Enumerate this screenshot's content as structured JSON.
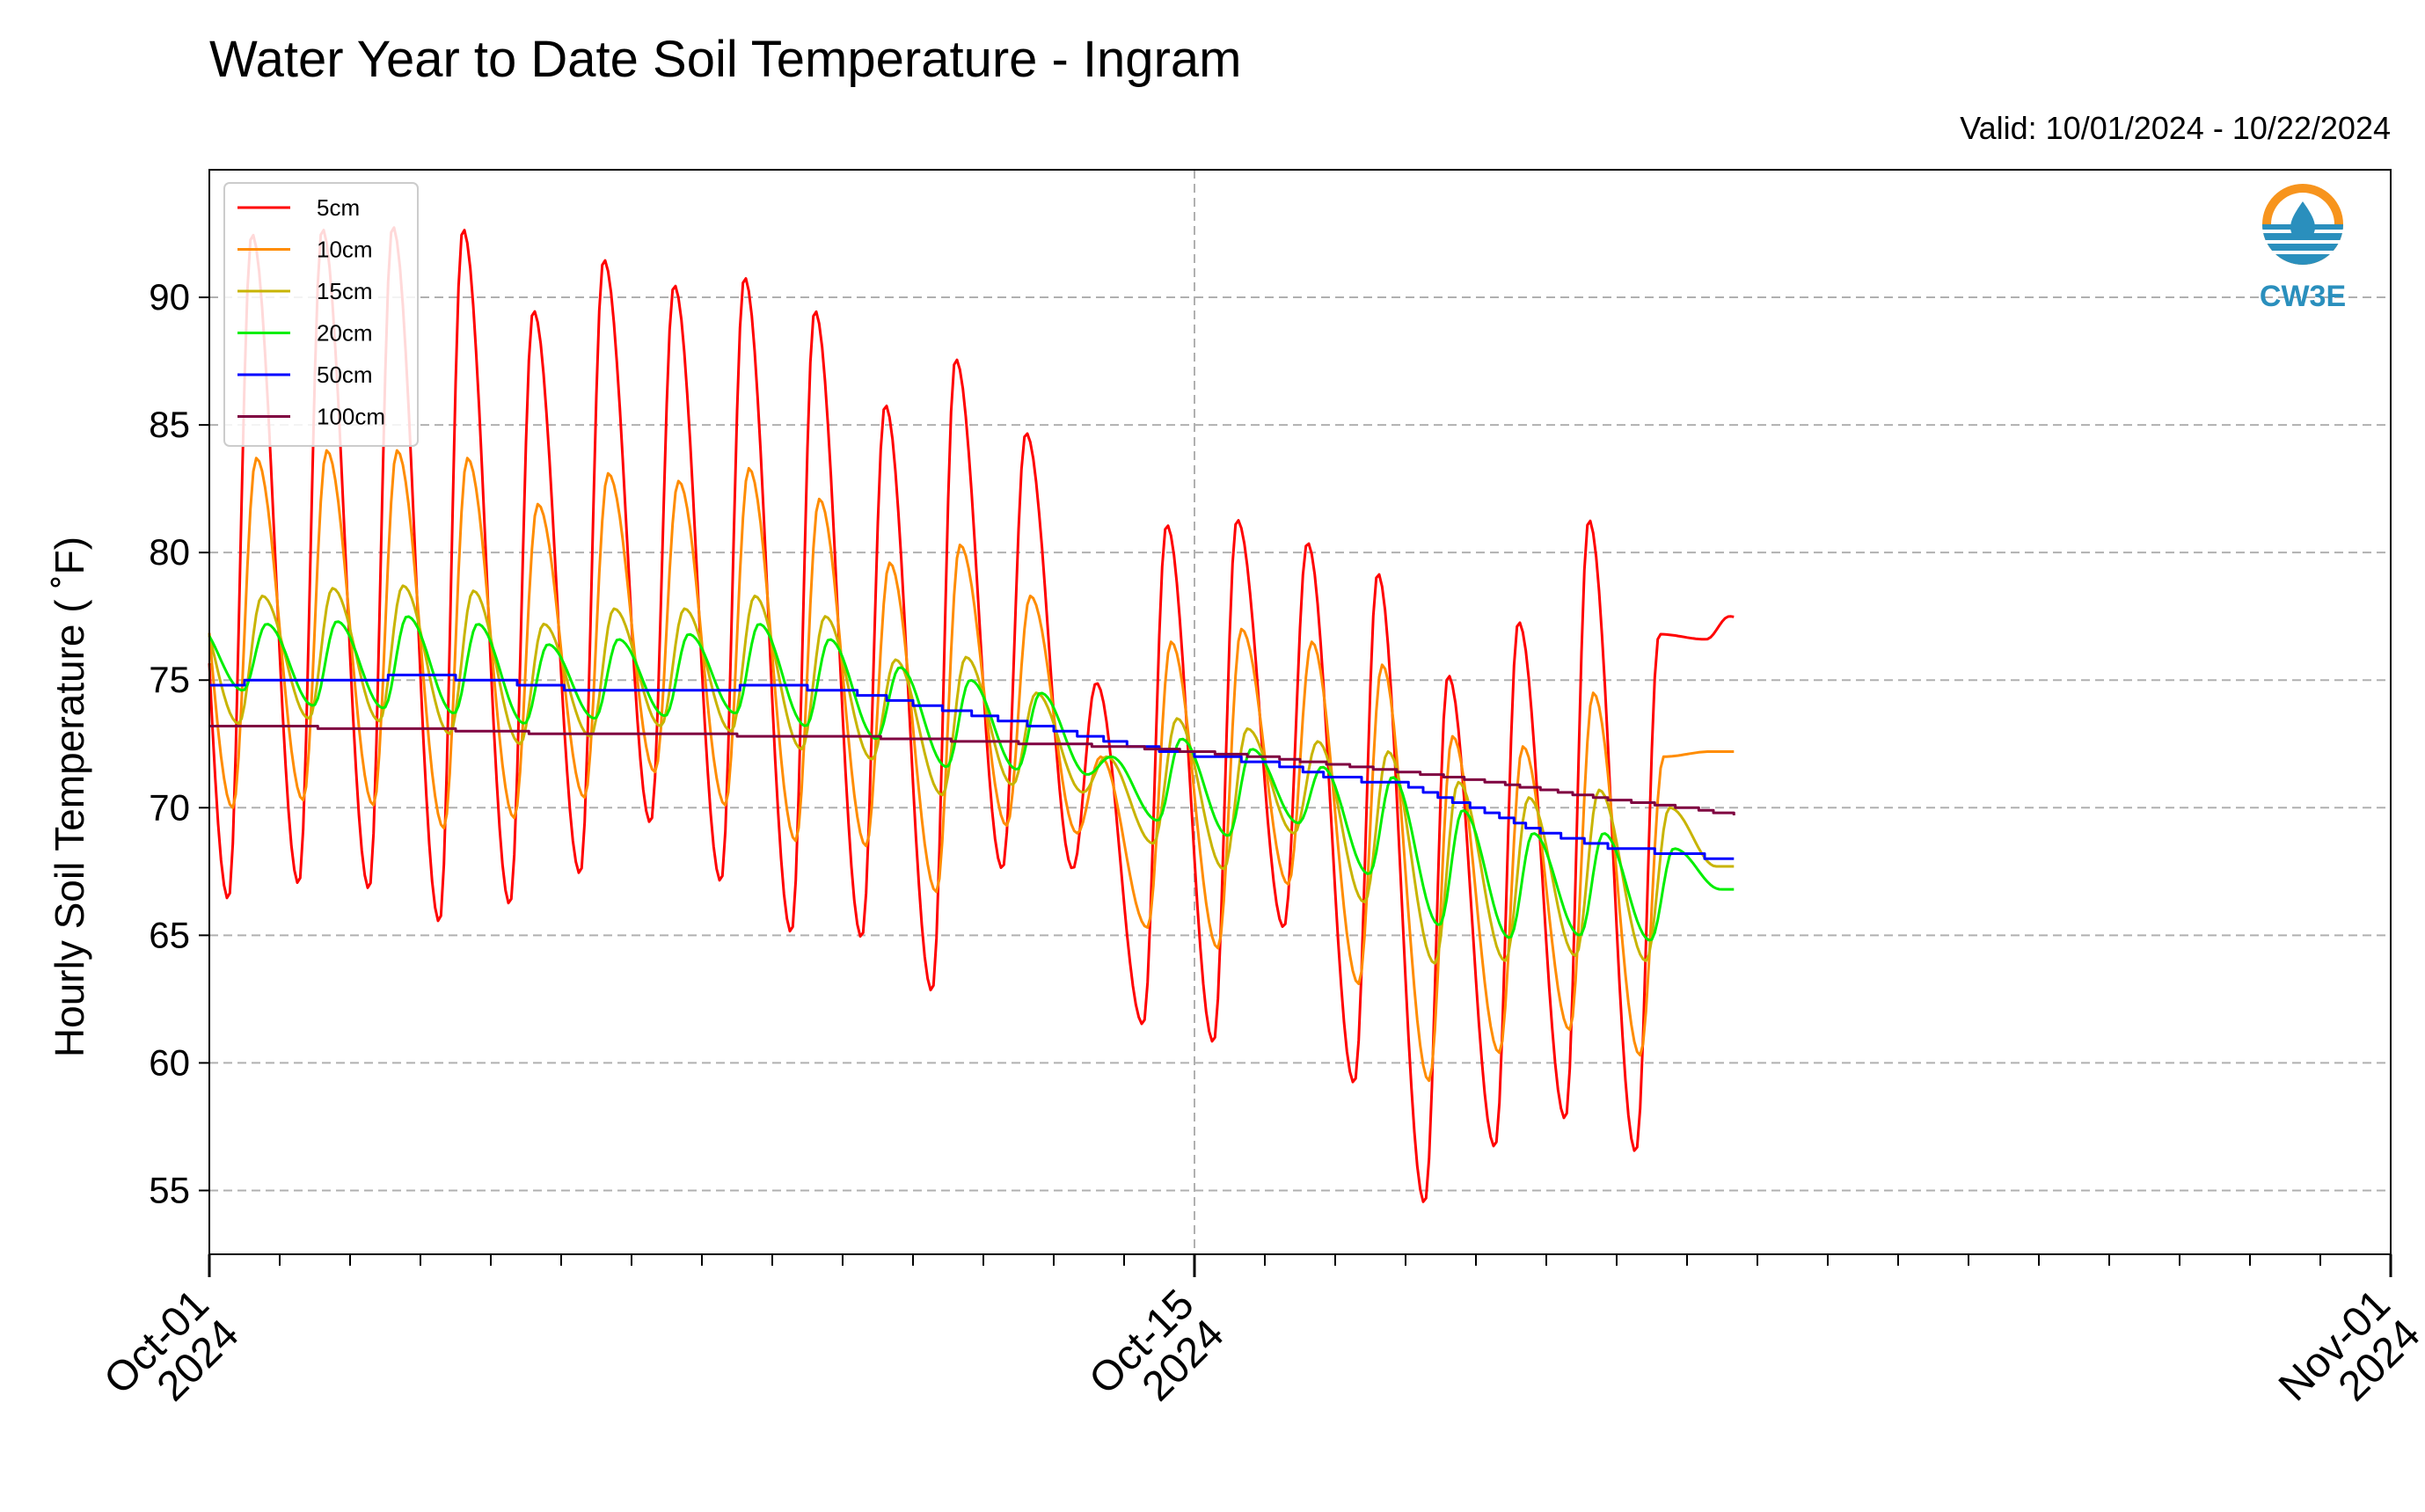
{
  "chart_data": {
    "type": "line",
    "title": "Water Year to Date Soil Temperature - Ingram",
    "subtitle": "Valid: 10/01/2024 - 10/22/2024",
    "ylabel": "Hourly Soil Temperature ( ˚F)",
    "xlabel": "",
    "xlim": [
      "2024-10-01",
      "2024-11-01"
    ],
    "ylim": [
      52.5,
      95
    ],
    "yticks": [
      55,
      60,
      65,
      70,
      75,
      80,
      85,
      90
    ],
    "xticks": [
      {
        "date": "2024-10-01",
        "line1": "Oct-01",
        "line2": "2024"
      },
      {
        "date": "2024-10-15",
        "line1": "Oct-15",
        "line2": "2024"
      },
      {
        "date": "2024-11-01",
        "line1": "Nov-01",
        "line2": "2024"
      }
    ],
    "minor_xticks": "daily",
    "grid": true,
    "legend_position": "upper-left",
    "data_start": "2024-10-01",
    "data_end": "2024-10-22",
    "series": [
      {
        "name": "5cm",
        "color": "#ff0000",
        "daily_max": [
          92.5,
          92.7,
          92.8,
          92.7,
          89.5,
          91.5,
          90.5,
          90.8,
          89.5,
          85.8,
          87.6,
          84.7,
          74.9,
          81.1,
          81.3,
          80.4,
          79.2,
          75.2,
          77.3,
          81.3,
          76.8,
          77.5
        ],
        "daily_min": [
          66.4,
          67.0,
          66.8,
          65.5,
          66.2,
          67.4,
          69.4,
          67.1,
          65.1,
          64.9,
          62.8,
          67.6,
          67.6,
          61.5,
          60.8,
          65.3,
          59.2,
          54.5,
          56.7,
          57.8,
          56.5,
          76.6
        ],
        "peak_hour": 14.5,
        "min_hour": 6.5
      },
      {
        "name": "10cm",
        "color": "#ff8c00",
        "daily_max": [
          83.7,
          84.0,
          84.0,
          83.7,
          81.9,
          83.1,
          82.8,
          83.3,
          82.1,
          79.6,
          80.3,
          78.3,
          72.0,
          76.5,
          77.0,
          76.5,
          75.6,
          72.8,
          72.4,
          74.5,
          72.0,
          72.2
        ],
        "daily_min": [
          70.0,
          70.3,
          70.1,
          69.2,
          69.6,
          70.4,
          71.4,
          70.1,
          68.7,
          68.5,
          66.7,
          69.3,
          69.0,
          65.3,
          64.5,
          67.0,
          63.1,
          59.3,
          60.4,
          61.3,
          60.3,
          72.2
        ],
        "peak_hour": 16,
        "min_hour": 8
      },
      {
        "name": "15cm",
        "color": "#c8b400",
        "daily_max": [
          78.3,
          78.6,
          78.7,
          78.5,
          77.2,
          77.8,
          77.8,
          78.3,
          77.5,
          75.8,
          75.9,
          74.5,
          72.0,
          73.5,
          73.1,
          72.6,
          72.2,
          71.0,
          70.4,
          70.7,
          70.0,
          67.7
        ],
        "daily_min": [
          73.3,
          73.5,
          73.4,
          72.9,
          72.5,
          72.8,
          73.2,
          73.0,
          72.3,
          71.9,
          70.5,
          70.9,
          70.6,
          68.6,
          67.6,
          69.0,
          66.3,
          63.9,
          64.0,
          64.2,
          64.0,
          67.7
        ],
        "peak_hour": 18,
        "min_hour": 10
      },
      {
        "name": "20cm",
        "color": "#00ee00",
        "daily_max": [
          77.2,
          77.3,
          77.5,
          77.2,
          76.4,
          76.6,
          76.8,
          77.2,
          76.6,
          75.5,
          75.0,
          74.5,
          72.0,
          72.7,
          72.3,
          71.6,
          71.2,
          69.9,
          69.0,
          69.0,
          68.4,
          66.8
        ],
        "daily_min": [
          74.6,
          74.0,
          73.9,
          73.7,
          73.3,
          73.5,
          73.6,
          73.7,
          73.2,
          72.7,
          71.6,
          71.5,
          71.3,
          69.5,
          68.9,
          69.4,
          67.4,
          65.4,
          64.9,
          65.0,
          64.8,
          66.8
        ],
        "peak_hour": 19.5,
        "min_hour": 11.5
      },
      {
        "name": "50cm",
        "color": "#0000ff",
        "values_daily": [
          74.7,
          75.1,
          75.0,
          75.2,
          75.0,
          74.7,
          74.5,
          74.6,
          74.8,
          74.6,
          74.1,
          73.6,
          73.1,
          72.5,
          72.1,
          71.8,
          71.2,
          70.9,
          70.0,
          69.0,
          68.4,
          68.2,
          67.8
        ],
        "step": 0.2
      },
      {
        "name": "100cm",
        "color": "#7f0040",
        "values_daily": [
          73.2,
          73.2,
          73.1,
          73.1,
          73.0,
          72.9,
          72.9,
          72.9,
          72.8,
          72.8,
          72.7,
          72.6,
          72.5,
          72.4,
          72.2,
          72.0,
          71.7,
          71.4,
          71.1,
          70.7,
          70.3,
          70.0,
          69.6
        ],
        "step": 0.1
      }
    ]
  },
  "logo": {
    "text": "CW3E",
    "colors": {
      "orange": "#f7941d",
      "blue": "#2a8fbd"
    }
  }
}
